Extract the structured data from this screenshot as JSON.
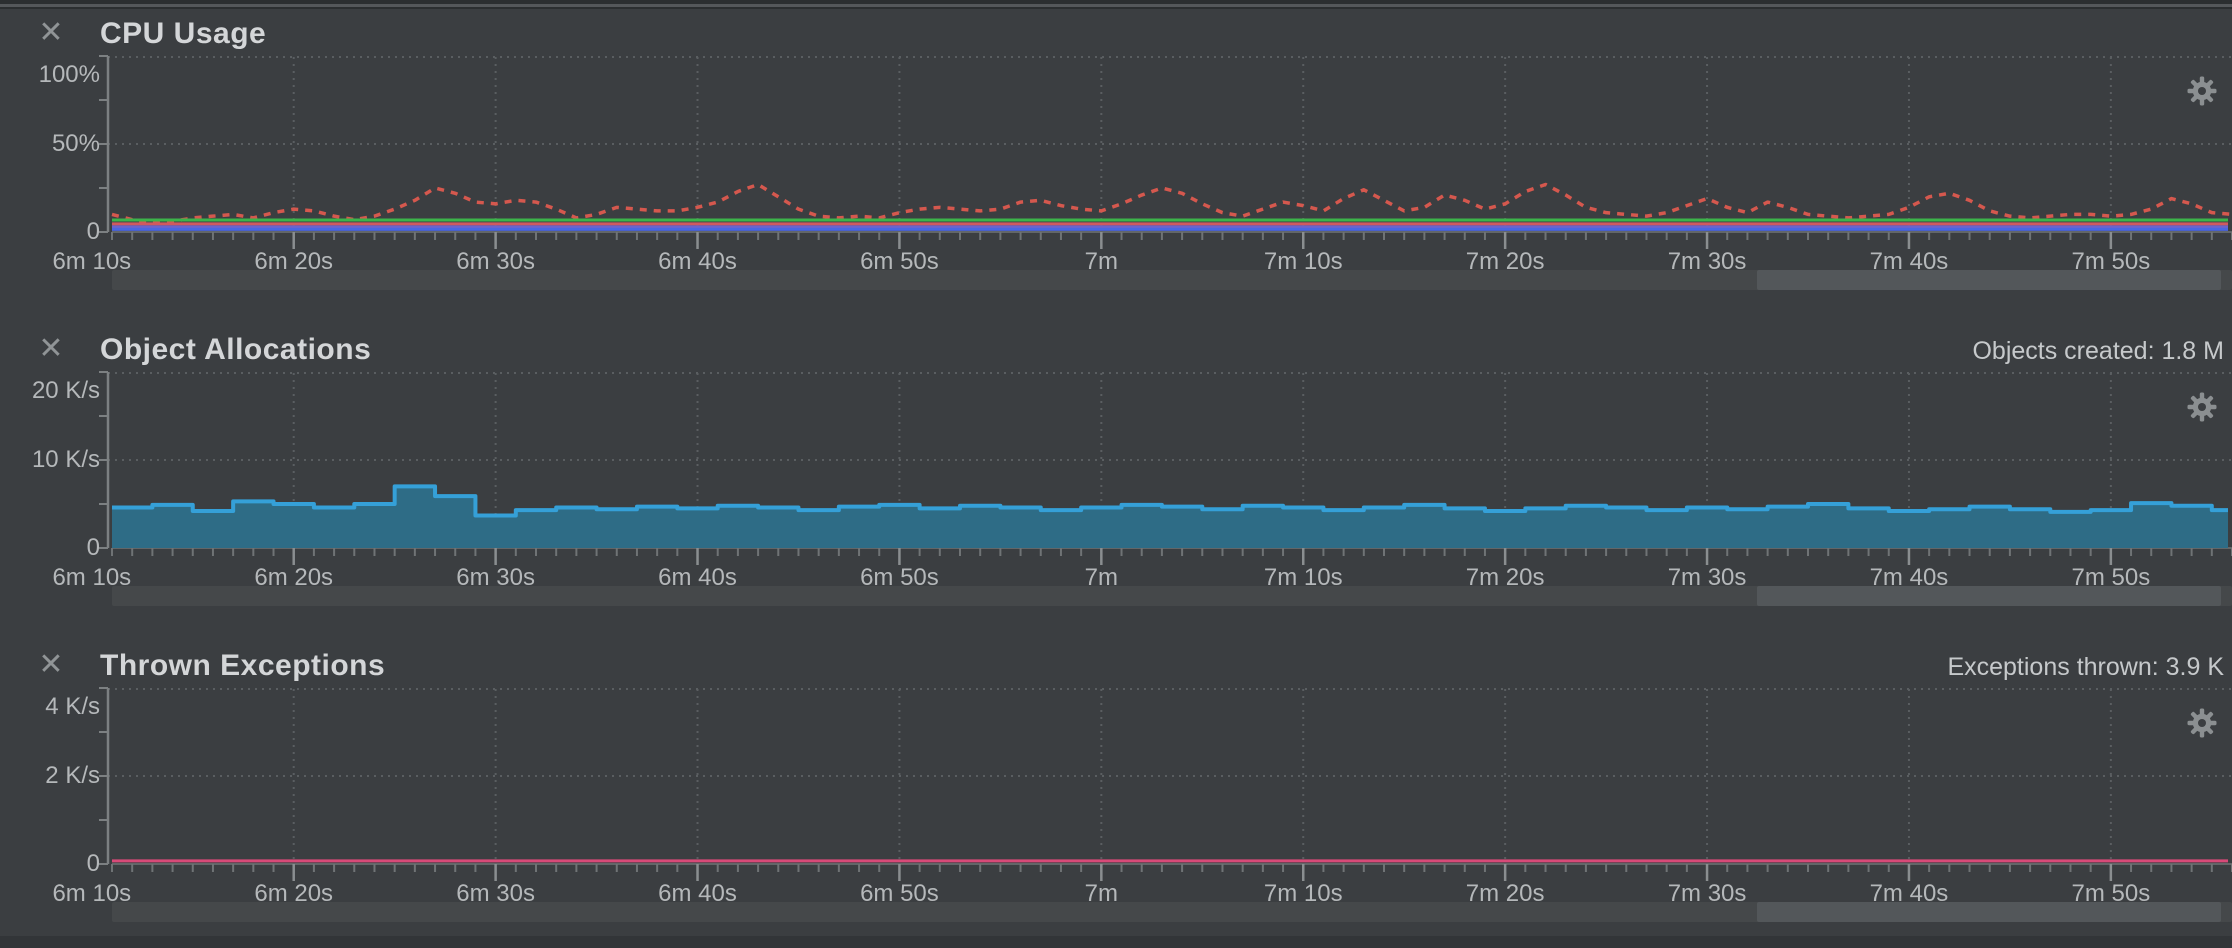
{
  "ui": {
    "close_glyph": "✕",
    "colors": {
      "background": "#3b3e41",
      "grid": "#5a5e61",
      "axis": "#7c8082",
      "tick_minor": "#6f7375",
      "tick_major": "#8a8e90",
      "label": "#b5b8ba",
      "title": "#d4d6d8",
      "gear": "#8b8f91",
      "scroll_track": "#45484a",
      "scroll_thumb": "#53575a"
    }
  },
  "panels": [
    {
      "title": "CPU Usage",
      "counter": "",
      "y_labels": [
        "100%",
        "50%",
        "0"
      ]
    },
    {
      "title": "Object Allocations",
      "counter": "Objects created: 1.8 M",
      "y_labels": [
        "20 K/s",
        "10 K/s",
        "0"
      ]
    },
    {
      "title": "Thrown Exceptions",
      "counter": "Exceptions thrown: 3.9 K",
      "y_labels": [
        "4 K/s",
        "2 K/s",
        "0"
      ]
    }
  ],
  "time_axis": {
    "major_labels": [
      "6m 10s",
      "6m 20s",
      "6m 30s",
      "6m 40s",
      "6m 50s",
      "7m",
      "7m 10s",
      "7m 20s",
      "7m 30s",
      "7m 40s",
      "7m 50s"
    ],
    "major_seconds": [
      370,
      380,
      390,
      400,
      410,
      420,
      430,
      440,
      450,
      460,
      470
    ],
    "window_start_s": 371,
    "window_end_s": 476,
    "minor_tick_step_s": 1
  },
  "chart_data": [
    {
      "type": "line",
      "title": "CPU Usage",
      "ylabel": "percent",
      "ylim": [
        0,
        100
      ],
      "grid": true,
      "series": [
        {
          "name": "process-cpu-dotted",
          "style": "dotted",
          "color": "#d5584e",
          "x_start_s": 371,
          "x_step_s": 1,
          "values": [
            10,
            7,
            5,
            6,
            8,
            9,
            10,
            8,
            11,
            13,
            12,
            9,
            7,
            9,
            13,
            18,
            25,
            22,
            17,
            16,
            18,
            17,
            13,
            8,
            10,
            14,
            13,
            12,
            12,
            14,
            17,
            23,
            27,
            20,
            13,
            9,
            8,
            9,
            8,
            11,
            13,
            14,
            13,
            12,
            13,
            17,
            18,
            15,
            13,
            12,
            16,
            21,
            25,
            22,
            16,
            11,
            9,
            13,
            17,
            15,
            12,
            19,
            24,
            18,
            12,
            14,
            21,
            18,
            13,
            16,
            23,
            27,
            21,
            14,
            11,
            10,
            9,
            11,
            15,
            19,
            14,
            11,
            17,
            14,
            10,
            9,
            8,
            9,
            10,
            14,
            20,
            22,
            18,
            12,
            9,
            8,
            9,
            10,
            10,
            9,
            10,
            13,
            19,
            16,
            11,
            10
          ]
        },
        {
          "name": "flat-green",
          "style": "solid",
          "color": "#3cb44a",
          "value": 6.8
        },
        {
          "name": "flat-red",
          "style": "solid",
          "color": "#cf5a5f",
          "value": 4.6
        },
        {
          "name": "flat-violet",
          "style": "solid",
          "color": "#6c63cb",
          "value": 2.9
        },
        {
          "name": "flat-blue",
          "style": "solid",
          "color": "#4a66e0",
          "value": 1.5
        }
      ]
    },
    {
      "type": "area",
      "title": "Object Allocations",
      "ylabel": "K/s",
      "ylim": [
        0,
        20
      ],
      "grid": true,
      "step": true,
      "line_color": "#35a0d8",
      "fill_color": "#2e6c86",
      "x_start_s": 371,
      "x_step_s": 2,
      "values": [
        4.6,
        4.9,
        4.2,
        5.3,
        5.0,
        4.6,
        5.0,
        7.0,
        5.9,
        3.7,
        4.3,
        4.6,
        4.4,
        4.7,
        4.5,
        4.8,
        4.6,
        4.3,
        4.7,
        4.9,
        4.5,
        4.8,
        4.6,
        4.3,
        4.6,
        4.9,
        4.7,
        4.4,
        4.8,
        4.6,
        4.3,
        4.6,
        4.9,
        4.5,
        4.2,
        4.5,
        4.8,
        4.6,
        4.3,
        4.6,
        4.4,
        4.7,
        5.0,
        4.5,
        4.2,
        4.4,
        4.7,
        4.4,
        4.1,
        4.3,
        5.1,
        4.8,
        4.3
      ],
      "total_label": "Objects created: 1.8 M"
    },
    {
      "type": "line",
      "title": "Thrown Exceptions",
      "ylabel": "K/s",
      "ylim": [
        0,
        4
      ],
      "grid": true,
      "series": [
        {
          "name": "exceptions-rate",
          "style": "solid",
          "color": "#d84a78",
          "value": 0.07
        }
      ],
      "total_label": "Exceptions thrown: 3.9 K"
    }
  ]
}
